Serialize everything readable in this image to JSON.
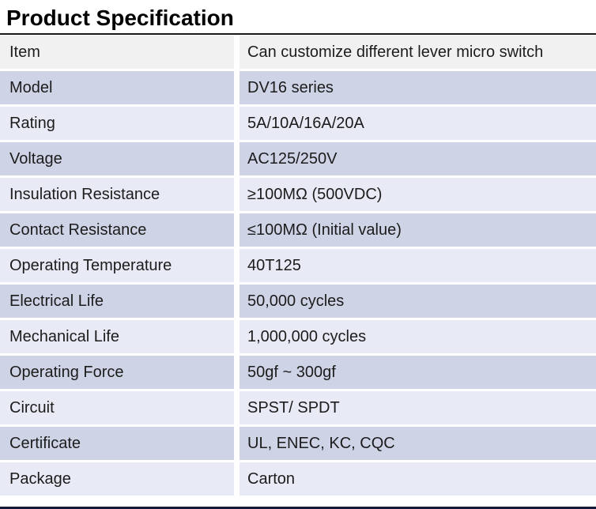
{
  "page": {
    "title": "Product Specification"
  },
  "table": {
    "rows": [
      {
        "label": "Item",
        "value": "Can customize different lever micro switch"
      },
      {
        "label": "Model",
        "value": "DV16 series"
      },
      {
        "label": "Rating",
        "value": "5A/10A/16A/20A"
      },
      {
        "label": "Voltage",
        "value": "AC125/250V"
      },
      {
        "label": "Insulation Resistance",
        "value": "≥100MΩ (500VDC)"
      },
      {
        "label": "Contact Resistance",
        "value": "≤100MΩ (Initial value)"
      },
      {
        "label": "Operating Temperature",
        "value": "40T125"
      },
      {
        "label": "Electrical Life",
        "value": "50,000 cycles"
      },
      {
        "label": "Mechanical Life",
        "value": "1,000,000 cycles"
      },
      {
        "label": "Operating Force",
        "value": "50gf ~ 300gf"
      },
      {
        "label": "Circuit",
        "value": "SPST/ SPDT"
      },
      {
        "label": "Certificate",
        "value": "UL, ENEC, KC, CQC"
      },
      {
        "label": "Package",
        "value": "Carton"
      }
    ],
    "colors": {
      "first_row_bg": "#f1f1f1",
      "lavender_row_bg": "#cfd3e6",
      "light_row_bg": "#e8eaf5",
      "top_border": "#1a1a1a",
      "bottom_border": "#141a36",
      "text": "#1c1c1c"
    }
  }
}
